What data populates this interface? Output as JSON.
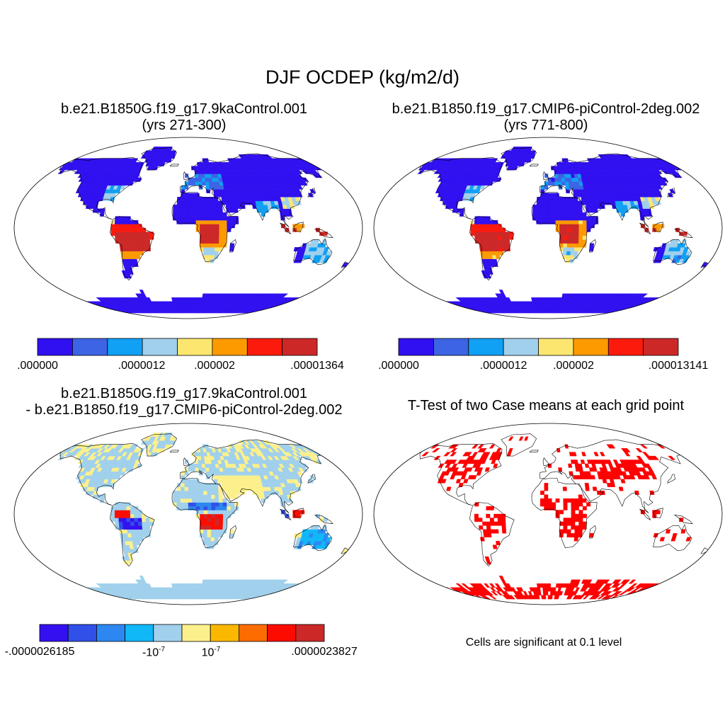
{
  "title": "DJF OCDEP (kg/m2/d)",
  "panels": [
    {
      "id": "p1",
      "title_line1": "b.e21.B1850G.f19_g17.9kaControl.001",
      "title_line2": "(yrs 271-300)"
    },
    {
      "id": "p2",
      "title_line1": "b.e21.B1850.f19_g17.CMIP6-piControl-2deg.002",
      "title_line2": "(yrs 771-800)"
    },
    {
      "id": "p3",
      "title_line1": "b.e21.B1850G.f19_g17.9kaControl.001",
      "title_line2": "- b.e21.B1850.f19_g17.CMIP6-piControl-2deg.002"
    },
    {
      "id": "p4",
      "title_line1": "T-Test of two Case means at each grid point"
    }
  ],
  "colorbars": {
    "cb1": {
      "colors": [
        "#3010f0",
        "#3c64e4",
        "#10a0f4",
        "#a0d0ec",
        "#fce670",
        "#fc9a00",
        "#fc1a0c",
        "#cc2828"
      ],
      "labels": [
        ".000000",
        ".0000012",
        ".000002",
        ".00001364"
      ]
    },
    "cb2": {
      "colors": [
        "#3010f0",
        "#3c64e4",
        "#10a0f4",
        "#a0d0ec",
        "#fce670",
        "#fc9a00",
        "#fc1a0c",
        "#cc2828"
      ],
      "labels": [
        ".000000",
        ".0000012",
        ".000002",
        ".000013141"
      ]
    },
    "cb3": {
      "colors": [
        "#3410f0",
        "#3050e8",
        "#2c88f0",
        "#10b8f8",
        "#a0d0ec",
        "#fcf08c",
        "#fcb800",
        "#fc6c00",
        "#fc0c00",
        "#cc2828"
      ],
      "labels": [
        "-.0000026185",
        "-10",
        "-7",
        "10",
        "-7",
        ".0000023827"
      ]
    }
  },
  "note": "Cells are significant at 0.1 level",
  "colors": {
    "land_outline": "#000000",
    "significant": "#ff0000"
  }
}
